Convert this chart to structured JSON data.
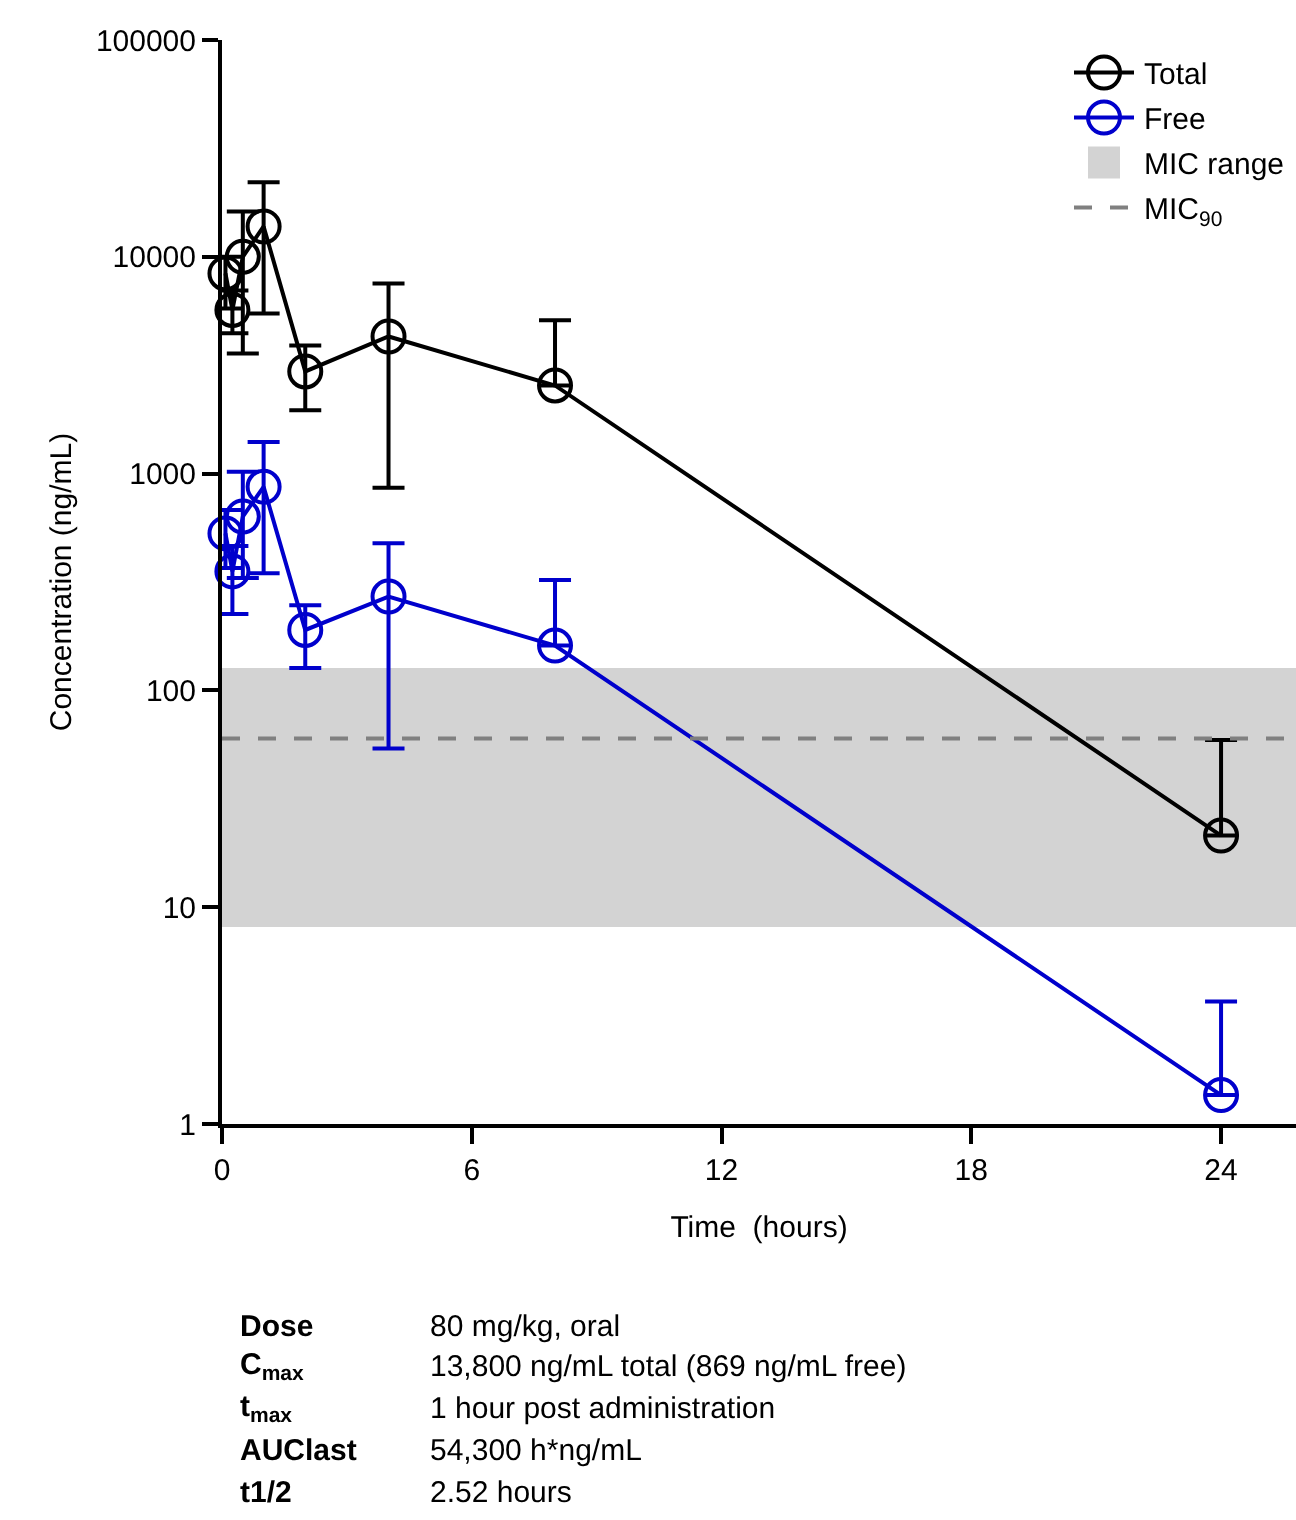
{
  "chart_data": {
    "type": "line",
    "xlabel": "Time  (hours)",
    "ylabel": "Concentration (ng/mL)",
    "x": [
      0.083,
      0.25,
      0.5,
      1,
      2,
      4,
      8,
      24
    ],
    "series": [
      {
        "name": "Total",
        "color": "#000000",
        "values": [
          8380,
          5690,
          10000,
          13800,
          2960,
          4290,
          2550,
          21.4
        ],
        "errors": [
          [
            5770,
            10000
          ],
          [
            4440,
            7000
          ],
          [
            3580,
            16200
          ],
          [
            5480,
            22100
          ],
          [
            1960,
            3900
          ],
          [
            860,
            7530
          ],
          [
            2550,
            5100
          ],
          [
            21.4,
            59
          ]
        ]
      },
      {
        "name": "Free",
        "color": "#0000cc",
        "values": [
          530,
          354,
          634,
          869,
          190,
          271,
          161,
          1.36
        ],
        "errors": [
          [
            367,
            680
          ],
          [
            225,
            464
          ],
          [
            330,
            1020
          ],
          [
            347,
            1400
          ],
          [
            127,
            247
          ],
          [
            54,
            477
          ],
          [
            161,
            323
          ],
          [
            1.36,
            3.67
          ]
        ]
      }
    ],
    "bands": [
      {
        "axis": "y",
        "from": 8.1,
        "to": 127,
        "label": "MIC range",
        "color": "#d3d3d3"
      }
    ],
    "ref_lines": [
      {
        "axis": "y",
        "value": 60,
        "label": "MIC$_{90}$",
        "color": "#808080",
        "line_style": "dashed"
      }
    ],
    "log": "y",
    "xlim": [
      0,
      25.8
    ],
    "xticks": [
      0,
      6,
      12,
      18,
      24
    ],
    "ylim": [
      1,
      100000
    ],
    "yticks": [
      1,
      10,
      100,
      1000,
      10000,
      100000
    ],
    "grid": false,
    "legend": "top right",
    "marker": "circle",
    "line_style": "solid",
    "annotations": [
      "Dose",
      "80 mg/kg, oral",
      "C$_{max}$",
      "13,800 ng/mL total (869 ng/mL free)",
      "t$_{max}$",
      "1 hour post administration",
      "AUClast",
      "54,300 h*ng/mL",
      "t1/2",
      "2.52 hours"
    ]
  }
}
